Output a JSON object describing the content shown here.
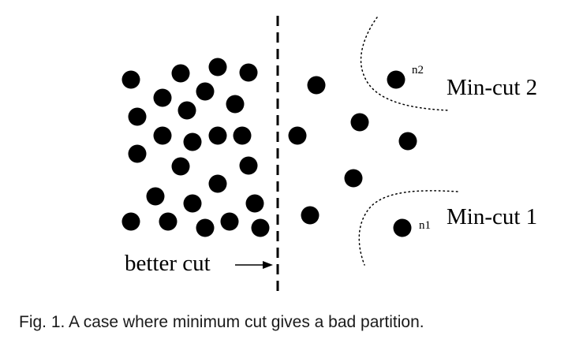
{
  "diagram": {
    "labels": {
      "min_cut_2": "Min-cut 2",
      "min_cut_1": "Min-cut 1",
      "node_n2": "n2",
      "node_n1": "n1",
      "better_cut": "better cut"
    }
  },
  "caption": "Fig. 1. A case where minimum cut gives a bad partition."
}
